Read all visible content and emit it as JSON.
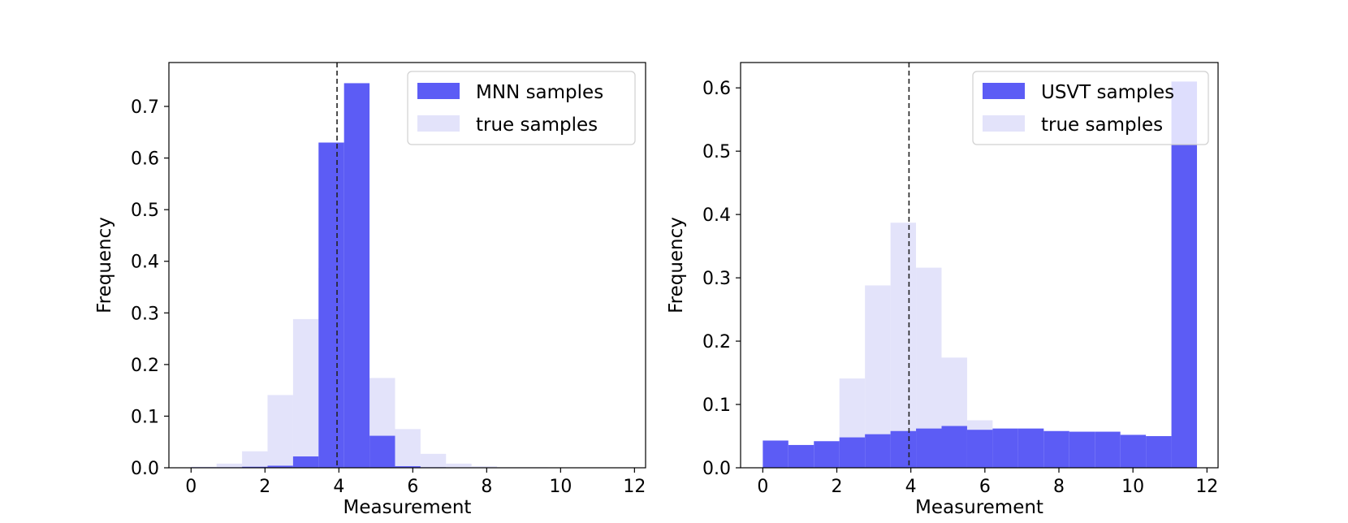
{
  "chart_data": [
    {
      "type": "bar",
      "subtype": "histogram",
      "xlabel": "Measurement",
      "ylabel": "Frequency",
      "xlim": [
        -0.6,
        12.3
      ],
      "ylim": [
        0,
        0.785
      ],
      "xticks": [
        "0",
        "2",
        "4",
        "6",
        "8",
        "10",
        "12"
      ],
      "yticks": [
        "0.0",
        "0.1",
        "0.2",
        "0.3",
        "0.4",
        "0.5",
        "0.6",
        "0.7"
      ],
      "vline_x": 3.95,
      "legend_position": "top-right",
      "series": [
        {
          "name": "true samples",
          "color": "#e3e3fa",
          "bin_edges": [
            0,
            0.69,
            1.38,
            2.07,
            2.76,
            3.45,
            4.14,
            4.83,
            5.52,
            6.21,
            6.9,
            7.59,
            8.28,
            8.97,
            9.66,
            10.35,
            11.04,
            11.73
          ],
          "values": [
            0.002,
            0.008,
            0.032,
            0.141,
            0.288,
            0.387,
            0.316,
            0.174,
            0.075,
            0.027,
            0.008,
            0.003,
            0.001,
            0.001,
            0.0,
            0.0,
            0.0
          ]
        },
        {
          "name": "MNN samples",
          "color": "#5c5cf5",
          "bin_edges": [
            0,
            0.69,
            1.38,
            2.07,
            2.76,
            3.45,
            4.14,
            4.83,
            5.52,
            6.21,
            6.9,
            7.59,
            8.28,
            8.97,
            9.66,
            10.35,
            11.04,
            11.73
          ],
          "values": [
            0.001,
            0.001,
            0.002,
            0.004,
            0.022,
            0.63,
            0.745,
            0.062,
            0.003,
            0.001,
            0.0,
            0.0,
            0.0,
            0.0,
            0.0,
            0.0,
            0.0
          ]
        }
      ]
    },
    {
      "type": "bar",
      "subtype": "histogram",
      "xlabel": "Measurement",
      "ylabel": "Frequency",
      "xlim": [
        -0.6,
        12.3
      ],
      "ylim": [
        0,
        0.64
      ],
      "xticks": [
        "0",
        "2",
        "4",
        "6",
        "8",
        "10",
        "12"
      ],
      "yticks": [
        "0.0",
        "0.1",
        "0.2",
        "0.3",
        "0.4",
        "0.5",
        "0.6"
      ],
      "vline_x": 3.95,
      "legend_position": "top-right",
      "series": [
        {
          "name": "true samples",
          "color": "#e3e3fa",
          "bin_edges": [
            0,
            0.69,
            1.38,
            2.07,
            2.76,
            3.45,
            4.14,
            4.83,
            5.52,
            6.21,
            6.9,
            7.59,
            8.28,
            8.97,
            9.66,
            10.35,
            11.04,
            11.73
          ],
          "values": [
            0.002,
            0.008,
            0.032,
            0.141,
            0.288,
            0.387,
            0.316,
            0.174,
            0.075,
            0.027,
            0.008,
            0.003,
            0.001,
            0.001,
            0.0,
            0.0,
            0.0
          ]
        },
        {
          "name": "USVT samples",
          "color": "#5c5cf5",
          "bin_edges": [
            0,
            0.69,
            1.38,
            2.07,
            2.76,
            3.45,
            4.14,
            4.83,
            5.52,
            6.21,
            6.9,
            7.59,
            8.28,
            8.97,
            9.66,
            10.35,
            11.04,
            11.73
          ],
          "values": [
            0.043,
            0.036,
            0.042,
            0.048,
            0.053,
            0.058,
            0.062,
            0.066,
            0.06,
            0.062,
            0.062,
            0.058,
            0.057,
            0.057,
            0.052,
            0.05,
            0.61
          ]
        }
      ]
    }
  ]
}
